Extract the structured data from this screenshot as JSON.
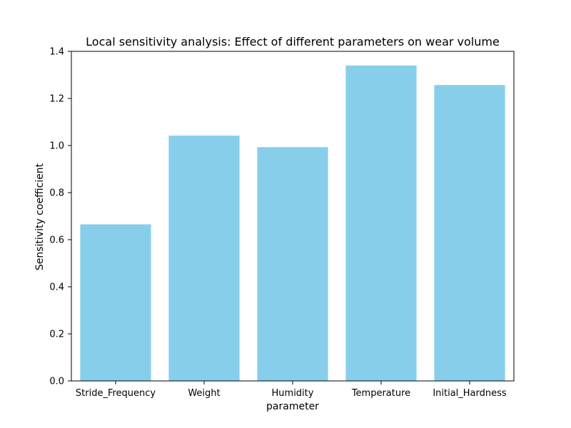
{
  "chart_data": {
    "type": "bar",
    "title": "Local sensitivity analysis: Effect of different parameters on wear volume",
    "xlabel": "parameter",
    "ylabel": "Sensitivity coefficient",
    "categories": [
      "Stride_Frequency",
      "Weight",
      "Humidity",
      "Temperature",
      "Initial_Hardness"
    ],
    "values": [
      0.665,
      1.042,
      0.993,
      1.34,
      1.257
    ],
    "ylim": [
      0,
      1.4
    ],
    "yticks": [
      "0.0",
      "0.2",
      "0.4",
      "0.6",
      "0.8",
      "1.0",
      "1.2",
      "1.4"
    ],
    "bar_color": "#87CEEB",
    "grid": false,
    "legend": "none"
  }
}
